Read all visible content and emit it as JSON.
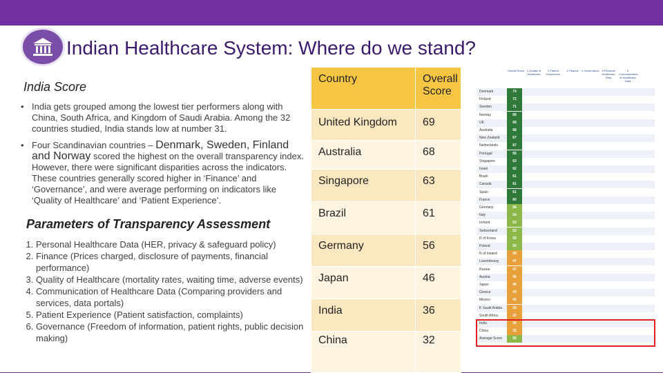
{
  "title": "Indian Healthcare System: Where do we stand?",
  "logo_icon": "government-building-icon",
  "india_score": {
    "heading": "India Score",
    "bullet1": "India gets grouped among the lowest tier performers along with China, South Africa, and Kingdom of Saudi Arabia. Among the 32 countries studied, India stands low at number 31.",
    "bullet2_pre": "Four Scandinavian countries – ",
    "bullet2_highlight": "Denmark, Sweden, Finland and Norway",
    "bullet2_post": " scored the highest on the overall transparency index. However, there were significant disparities across the indicators. These countries generally scored higher in ‘Finance’ and ‘Governance’, and were average performing on indicators like ‘Quality of Healthcare’ and ‘Patient Experience’."
  },
  "parameters": {
    "heading": "Parameters of Transparency Assessment",
    "items": [
      "Personal Healthcare Data (HER, privacy & safeguard policy)",
      "Finance (Prices charged, disclosure of payments, financial performance)",
      "Quality of Healthcare (mortality rates, waiting time, adverse events)",
      "Communication of Healthcare Data (Comparing providers and services, data portals)",
      "Patient Experience (Patient satisfaction, complaints)",
      "Governance (Freedom of information, patient rights, public decision making)"
    ]
  },
  "score_table": {
    "headers": [
      "Country",
      "Overall Score"
    ],
    "rows": [
      {
        "country": "United Kingdom",
        "score": "69"
      },
      {
        "country": "Australia",
        "score": "68"
      },
      {
        "country": "Singapore",
        "score": "63"
      },
      {
        "country": "Brazil",
        "score": "61"
      },
      {
        "country": "Germany",
        "score": "56"
      },
      {
        "country": "Japan",
        "score": "46"
      },
      {
        "country": "India",
        "score": "36"
      },
      {
        "country": "China",
        "score": "32"
      }
    ]
  },
  "ranking_table": {
    "headers": [
      "Overall Score",
      "1 Quality of Healthcare",
      "2 Patient Experience",
      "3 Finance",
      "4 Governance",
      "5 Personal Healthcare Data",
      "6 Communication of Healthcare Data"
    ],
    "rows": [
      {
        "country": "Denmark",
        "overall": "74"
      },
      {
        "country": "Finland",
        "overall": "72"
      },
      {
        "country": "Sweden",
        "overall": "71"
      },
      {
        "country": "Norway",
        "overall": "69"
      },
      {
        "country": "UK",
        "overall": "69"
      },
      {
        "country": "Australia",
        "overall": "68"
      },
      {
        "country": "New Zealand",
        "overall": "67"
      },
      {
        "country": "Netherlands",
        "overall": "67"
      },
      {
        "country": "Portugal",
        "overall": "65"
      },
      {
        "country": "Singapore",
        "overall": "63"
      },
      {
        "country": "Israel",
        "overall": "62"
      },
      {
        "country": "Brazil",
        "overall": "61"
      },
      {
        "country": "Canada",
        "overall": "61"
      },
      {
        "country": "Spain",
        "overall": "61"
      },
      {
        "country": "France",
        "overall": "60"
      },
      {
        "country": "Germany",
        "overall": "56"
      },
      {
        "country": "Italy",
        "overall": "54"
      },
      {
        "country": "Ireland",
        "overall": "53"
      },
      {
        "country": "Switzerland",
        "overall": "53"
      },
      {
        "country": "R of Korea",
        "overall": "52"
      },
      {
        "country": "Poland",
        "overall": "50"
      },
      {
        "country": "R of Ireland",
        "overall": "49"
      },
      {
        "country": "Luxembourg",
        "overall": "47"
      },
      {
        "country": "Russia",
        "overall": "47"
      },
      {
        "country": "Austria",
        "overall": "46"
      },
      {
        "country": "Japan",
        "overall": "46"
      },
      {
        "country": "Greece",
        "overall": "43"
      },
      {
        "country": "Mexico",
        "overall": "42"
      },
      {
        "country": "K Saudi Arabia",
        "overall": "39"
      },
      {
        "country": "South Africa",
        "overall": "37"
      },
      {
        "country": "India",
        "overall": "36"
      },
      {
        "country": "China",
        "overall": "32"
      },
      {
        "country": "Average Score",
        "overall": "55"
      }
    ]
  },
  "colors": {
    "background": "#7030a0",
    "title": "#3b1a6b",
    "table_header": "#f7c544",
    "table_row_odd": "#fce8c0",
    "table_row_even": "#fef4e1",
    "ranking_top": "#2f7a3a",
    "ranking_mid": "#8cb84a",
    "ranking_low": "#e8a13a",
    "highlight": "#e02020"
  }
}
